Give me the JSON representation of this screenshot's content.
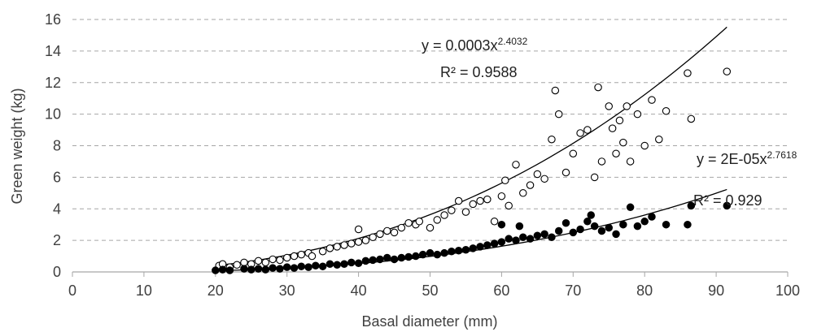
{
  "chart_data": {
    "type": "scatter",
    "title": "",
    "xlabel": "Basal diameter (mm)",
    "ylabel": "Green weight (kg)",
    "xlim": [
      0,
      100
    ],
    "ylim": [
      0,
      16
    ],
    "x_ticks": [
      "0",
      "10",
      "20",
      "30",
      "40",
      "50",
      "60",
      "70",
      "80",
      "90",
      "100"
    ],
    "y_ticks": [
      "0",
      "2",
      "4",
      "6",
      "8",
      "10",
      "12",
      "14",
      "16"
    ],
    "grid": "horizontal dashed",
    "series": [
      {
        "marker": "open-circle",
        "color": "#000000",
        "fit_equation": {
          "base": "y = 0.0003x",
          "exponent": "2.4032"
        },
        "fit_r2": "R² = 0.9588",
        "points": [
          [
            20.5,
            0.4
          ],
          [
            21,
            0.5
          ],
          [
            22,
            0.3
          ],
          [
            23,
            0.45
          ],
          [
            24,
            0.6
          ],
          [
            25,
            0.5
          ],
          [
            26,
            0.7
          ],
          [
            27,
            0.6
          ],
          [
            28,
            0.8
          ],
          [
            29,
            0.75
          ],
          [
            30,
            0.9
          ],
          [
            31,
            1.0
          ],
          [
            32,
            1.1
          ],
          [
            33,
            1.2
          ],
          [
            33.5,
            1.0
          ],
          [
            35,
            1.3
          ],
          [
            36,
            1.5
          ],
          [
            37,
            1.6
          ],
          [
            38,
            1.7
          ],
          [
            39,
            1.8
          ],
          [
            40,
            1.9
          ],
          [
            40,
            2.7
          ],
          [
            41,
            2.0
          ],
          [
            42,
            2.2
          ],
          [
            43,
            2.4
          ],
          [
            44,
            2.6
          ],
          [
            45,
            2.5
          ],
          [
            46,
            2.8
          ],
          [
            47,
            3.1
          ],
          [
            48,
            3.0
          ],
          [
            48.5,
            3.2
          ],
          [
            50,
            2.8
          ],
          [
            51,
            3.3
          ],
          [
            52,
            3.6
          ],
          [
            53,
            3.9
          ],
          [
            54,
            4.5
          ],
          [
            55,
            3.8
          ],
          [
            56,
            4.3
          ],
          [
            57,
            4.5
          ],
          [
            58,
            4.6
          ],
          [
            59,
            3.2
          ],
          [
            60,
            4.8
          ],
          [
            60.5,
            5.8
          ],
          [
            61,
            4.2
          ],
          [
            62,
            6.8
          ],
          [
            63,
            5.0
          ],
          [
            64,
            5.5
          ],
          [
            65,
            6.2
          ],
          [
            66,
            5.9
          ],
          [
            67,
            8.4
          ],
          [
            67.5,
            11.5
          ],
          [
            68,
            10.0
          ],
          [
            69,
            6.3
          ],
          [
            70,
            7.5
          ],
          [
            71,
            8.8
          ],
          [
            72,
            9.0
          ],
          [
            73,
            6.0
          ],
          [
            73.5,
            11.7
          ],
          [
            74,
            7.0
          ],
          [
            75,
            10.5
          ],
          [
            75.5,
            9.1
          ],
          [
            76,
            7.5
          ],
          [
            76.5,
            9.6
          ],
          [
            77,
            8.2
          ],
          [
            77.5,
            10.5
          ],
          [
            78,
            7.0
          ],
          [
            79,
            10.0
          ],
          [
            80,
            8.0
          ],
          [
            81,
            10.9
          ],
          [
            82,
            8.4
          ],
          [
            83,
            10.2
          ],
          [
            86,
            12.6
          ],
          [
            86.5,
            9.7
          ],
          [
            91.5,
            12.7
          ]
        ]
      },
      {
        "marker": "filled-circle",
        "color": "#000000",
        "fit_equation": {
          "base": "y = 2E-05x",
          "exponent": "2.7618"
        },
        "fit_r2": "R² = 0.929",
        "points": [
          [
            20,
            0.1
          ],
          [
            21,
            0.15
          ],
          [
            22,
            0.1
          ],
          [
            24,
            0.2
          ],
          [
            25,
            0.15
          ],
          [
            26,
            0.2
          ],
          [
            27,
            0.15
          ],
          [
            28,
            0.25
          ],
          [
            29,
            0.2
          ],
          [
            30,
            0.3
          ],
          [
            31,
            0.25
          ],
          [
            32,
            0.35
          ],
          [
            33,
            0.3
          ],
          [
            34,
            0.4
          ],
          [
            35,
            0.35
          ],
          [
            36,
            0.5
          ],
          [
            37,
            0.45
          ],
          [
            38,
            0.5
          ],
          [
            39,
            0.6
          ],
          [
            40,
            0.55
          ],
          [
            41,
            0.7
          ],
          [
            42,
            0.75
          ],
          [
            43,
            0.8
          ],
          [
            44,
            0.9
          ],
          [
            45,
            0.8
          ],
          [
            46,
            0.9
          ],
          [
            47,
            0.95
          ],
          [
            48,
            1.0
          ],
          [
            49,
            1.1
          ],
          [
            50,
            1.2
          ],
          [
            51,
            1.1
          ],
          [
            52,
            1.2
          ],
          [
            53,
            1.3
          ],
          [
            54,
            1.35
          ],
          [
            55,
            1.4
          ],
          [
            56,
            1.5
          ],
          [
            57,
            1.6
          ],
          [
            58,
            1.7
          ],
          [
            59,
            1.8
          ],
          [
            60,
            1.9
          ],
          [
            60,
            3.0
          ],
          [
            61,
            2.1
          ],
          [
            62,
            2.0
          ],
          [
            62.5,
            2.9
          ],
          [
            63,
            2.2
          ],
          [
            64,
            2.1
          ],
          [
            65,
            2.3
          ],
          [
            66,
            2.4
          ],
          [
            67,
            2.2
          ],
          [
            68,
            2.6
          ],
          [
            69,
            3.1
          ],
          [
            70,
            2.5
          ],
          [
            71,
            2.7
          ],
          [
            72,
            3.2
          ],
          [
            72.5,
            3.6
          ],
          [
            73,
            2.9
          ],
          [
            74,
            2.6
          ],
          [
            75,
            2.8
          ],
          [
            76,
            2.4
          ],
          [
            77,
            3.0
          ],
          [
            78,
            4.1
          ],
          [
            79,
            2.9
          ],
          [
            80,
            3.2
          ],
          [
            81,
            3.5
          ],
          [
            83,
            3.0
          ],
          [
            86,
            3.0
          ],
          [
            86.5,
            4.2
          ],
          [
            91.5,
            4.2
          ]
        ]
      }
    ]
  }
}
